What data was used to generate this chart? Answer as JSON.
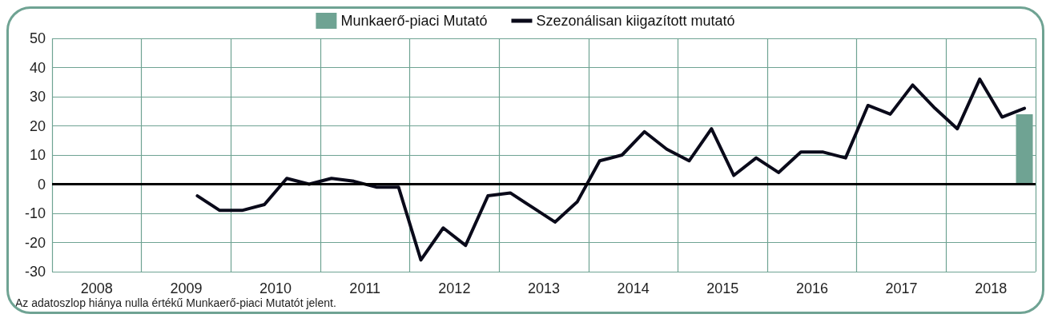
{
  "chart_data": {
    "type": "line",
    "xlim": [
      2008,
      2019
    ],
    "xticks": [
      {
        "value": 2008,
        "label": null
      },
      {
        "value": 2008.5,
        "label": "2008"
      },
      {
        "value": 2009,
        "label": null
      },
      {
        "value": 2009.5,
        "label": "2009"
      },
      {
        "value": 2010,
        "label": null
      },
      {
        "value": 2010.5,
        "label": "2010"
      },
      {
        "value": 2011,
        "label": null
      },
      {
        "value": 2011.5,
        "label": "2011"
      },
      {
        "value": 2012,
        "label": null
      },
      {
        "value": 2012.5,
        "label": "2012"
      },
      {
        "value": 2013,
        "label": null
      },
      {
        "value": 2013.5,
        "label": "2013"
      },
      {
        "value": 2014,
        "label": null
      },
      {
        "value": 2014.5,
        "label": "2014"
      },
      {
        "value": 2015,
        "label": null
      },
      {
        "value": 2015.5,
        "label": "2015"
      },
      {
        "value": 2016,
        "label": null
      },
      {
        "value": 2016.5,
        "label": "2016"
      },
      {
        "value": 2017,
        "label": null
      },
      {
        "value": 2017.5,
        "label": "2017"
      },
      {
        "value": 2018,
        "label": null
      },
      {
        "value": 2018.5,
        "label": "2018"
      },
      {
        "value": 2019,
        "label": null
      }
    ],
    "ylim": [
      -30,
      50
    ],
    "yticks": [
      -30,
      -20,
      -10,
      0,
      10,
      20,
      30,
      40,
      50
    ],
    "grid": true,
    "legend": "top",
    "marker": "none",
    "line_style": "solid",
    "ref_lines": [
      {
        "axis": "y",
        "value": 0,
        "color": "#000000"
      }
    ],
    "annotations": [
      "Az adatoszlop hiánya nulla értékű Munkaerő-piaci Mutatót jelent."
    ],
    "series": [
      {
        "name": "Munkaerő-piaci Mutató",
        "type": "bar",
        "color": "#6fa393",
        "x": [
          2018.875
        ],
        "values": [
          24
        ]
      },
      {
        "name": "Szezonálisan kiigazított mutató",
        "color": "#0a0a1a",
        "x": [
          2009.625,
          2009.875,
          2010.125,
          2010.375,
          2010.625,
          2010.875,
          2011.125,
          2011.375,
          2011.625,
          2011.875,
          2012.125,
          2012.375,
          2012.625,
          2012.875,
          2013.125,
          2013.375,
          2013.625,
          2013.875,
          2014.125,
          2014.375,
          2014.625,
          2014.875,
          2015.125,
          2015.375,
          2015.625,
          2015.875,
          2016.125,
          2016.375,
          2016.625,
          2016.875,
          2017.125,
          2017.375,
          2017.625,
          2017.875,
          2018.125,
          2018.375,
          2018.625,
          2018.875
        ],
        "values": [
          -4,
          -9,
          -9,
          -7,
          2,
          0,
          2,
          1,
          -1,
          -1,
          -26,
          -15,
          -21,
          -4,
          -3,
          -8,
          -13,
          -6,
          8,
          10,
          18,
          12,
          8,
          19,
          3,
          9,
          4,
          11,
          11,
          9,
          27,
          24,
          34,
          26,
          19,
          36,
          23,
          26
        ]
      }
    ]
  }
}
